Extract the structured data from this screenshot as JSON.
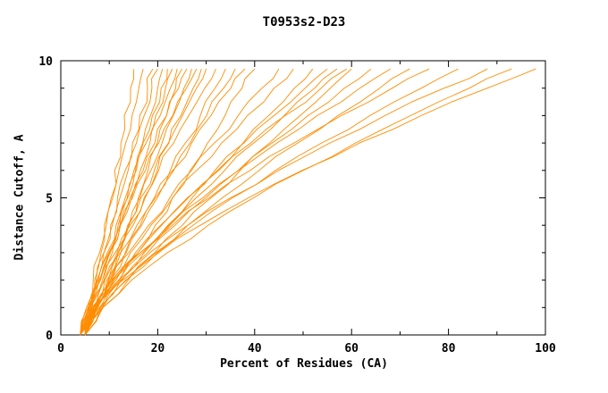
{
  "chart_data": {
    "type": "line",
    "title": "T0953s2-D23",
    "xlabel": "Percent of Residues (CA)",
    "ylabel": "Distance Cutoff, A",
    "xlim": [
      0,
      100
    ],
    "ylim": [
      0,
      10
    ],
    "x_ticks": [
      0,
      20,
      40,
      60,
      80,
      100
    ],
    "x_tick_labels": [
      "0",
      "20",
      "40",
      "60",
      "80",
      "100"
    ],
    "x_minor_ticks": [
      10,
      30,
      50,
      70,
      90
    ],
    "y_ticks": [
      0,
      5,
      10
    ],
    "y_tick_labels": [
      "0",
      "5",
      "10"
    ],
    "y_minor_ticks": [
      1,
      2,
      3,
      4,
      6,
      7,
      8,
      9
    ],
    "line_color": "#ff8c00",
    "grid": false,
    "legend": false,
    "wiggle_amplitude": 0.7,
    "y_levels": [
      0,
      1,
      2,
      3,
      4,
      5,
      6,
      7,
      8,
      9,
      9.7
    ],
    "curves": [
      [
        5,
        6.2,
        7.0,
        8.3,
        9.0,
        10.4,
        11.1,
        12.4,
        13.1,
        14.4,
        15
      ],
      [
        4,
        5.3,
        6.7,
        8.0,
        9.4,
        10.7,
        12.0,
        13.4,
        14.7,
        16.1,
        17
      ],
      [
        5,
        6.1,
        7.5,
        8.9,
        10.3,
        11.7,
        13.3,
        14.8,
        16.3,
        17.9,
        19
      ],
      [
        4,
        5.6,
        7.3,
        8.9,
        10.6,
        12.2,
        13.9,
        15.6,
        17.2,
        18.8,
        20
      ],
      [
        5,
        7.1,
        8.9,
        10.6,
        12.2,
        13.8,
        15.4,
        16.9,
        18.5,
        20.0,
        21
      ],
      [
        4,
        5.9,
        7.7,
        9.6,
        11.4,
        13.3,
        15.1,
        17.0,
        18.9,
        20.7,
        22
      ],
      [
        5,
        6.5,
        8.2,
        9.9,
        11.8,
        13.7,
        15.6,
        17.6,
        19.6,
        21.6,
        23
      ],
      [
        4,
        6.1,
        8.1,
        10.2,
        12.2,
        14.3,
        16.4,
        18.4,
        20.5,
        22.6,
        24
      ],
      [
        5,
        7.6,
        9.8,
        11.9,
        14.0,
        16.0,
        18.0,
        19.9,
        21.8,
        23.7,
        25
      ],
      [
        4,
        5.8,
        7.9,
        10.1,
        12.3,
        14.6,
        17.0,
        19.4,
        21.8,
        24.3,
        26
      ],
      [
        5,
        7.3,
        9.5,
        11.8,
        14.1,
        16.3,
        18.6,
        20.9,
        23.2,
        25.4,
        27
      ],
      [
        4,
        5.6,
        7.6,
        9.9,
        12.3,
        14.8,
        17.5,
        20.2,
        23.1,
        25.9,
        28
      ],
      [
        5,
        7.5,
        9.9,
        12.4,
        14.9,
        17.4,
        19.9,
        22.3,
        24.8,
        27.3,
        29
      ],
      [
        4,
        6.1,
        8.6,
        11.2,
        13.8,
        16.5,
        19.3,
        22.2,
        25.1,
        28.0,
        30
      ],
      [
        5,
        6.8,
        9.1,
        11.6,
        14.3,
        17.2,
        20.2,
        23.3,
        26.4,
        29.7,
        32
      ],
      [
        4,
        7.1,
        10.2,
        13.3,
        16.4,
        19.5,
        22.6,
        25.7,
        28.8,
        31.8,
        34
      ],
      [
        5,
        7.5,
        10.5,
        13.5,
        16.7,
        19.9,
        23.3,
        26.7,
        30.1,
        33.6,
        36
      ],
      [
        4,
        6.2,
        9.1,
        12.3,
        15.7,
        19.3,
        23.1,
        27.0,
        31.0,
        35.1,
        38
      ],
      [
        5,
        8.6,
        12.2,
        15.9,
        19.5,
        23.0,
        26.7,
        30.3,
        33.9,
        37.4,
        40
      ],
      [
        4,
        6.7,
        10.2,
        14.0,
        18.1,
        22.5,
        27.0,
        31.7,
        36.6,
        41.5,
        45
      ],
      [
        5,
        7.2,
        10.5,
        14.4,
        18.6,
        23.1,
        28.0,
        33.2,
        38.5,
        44.0,
        48
      ],
      [
        4,
        7.9,
        12.4,
        17.2,
        22.1,
        27.1,
        32.3,
        37.6,
        42.9,
        48.2,
        52
      ],
      [
        5,
        7.6,
        11.4,
        15.9,
        20.8,
        26.1,
        31.8,
        37.8,
        44.0,
        50.4,
        55
      ],
      [
        4,
        7.5,
        12.0,
        16.9,
        22.3,
        27.9,
        33.8,
        39.8,
        46.1,
        52.4,
        57
      ],
      [
        5,
        7.2,
        10.9,
        15.4,
        20.6,
        26.3,
        32.6,
        39.2,
        46.3,
        53.7,
        59
      ],
      [
        4,
        8.6,
        13.9,
        19.4,
        25.1,
        31.0,
        37.0,
        43.1,
        49.4,
        55.6,
        60
      ],
      [
        5,
        8.1,
        12.6,
        17.9,
        23.6,
        29.9,
        36.6,
        43.6,
        51.0,
        58.5,
        64
      ],
      [
        4,
        6.7,
        11.0,
        16.4,
        22.5,
        29.3,
        36.7,
        44.6,
        52.9,
        61.7,
        68
      ],
      [
        5,
        8.5,
        13.6,
        19.6,
        26.2,
        33.3,
        40.9,
        48.9,
        57.2,
        65.8,
        72
      ],
      [
        4,
        6.4,
        10.7,
        16.4,
        23.0,
        30.6,
        39.1,
        48.1,
        57.9,
        68.4,
        76
      ],
      [
        5,
        8.2,
        13.4,
        19.9,
        27.3,
        35.4,
        44.3,
        53.8,
        63.8,
        74.4,
        82
      ],
      [
        4,
        6.8,
        11.9,
        18.4,
        26.2,
        35.0,
        44.9,
        55.5,
        66.9,
        79.1,
        88
      ],
      [
        5,
        8.7,
        14.6,
        22.0,
        30.4,
        39.8,
        50.0,
        60.8,
        72.2,
        84.3,
        93
      ],
      [
        4,
        7.1,
        12.8,
        20.2,
        28.8,
        38.7,
        49.8,
        61.6,
        74.4,
        88.0,
        98
      ]
    ]
  }
}
